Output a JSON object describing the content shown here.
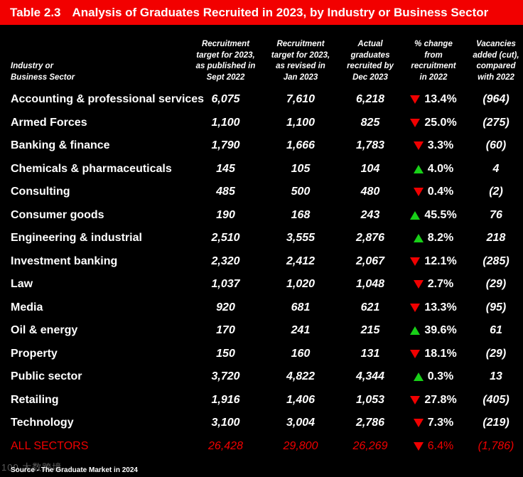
{
  "title": {
    "number": "Table 2.3",
    "text": "Analysis of Graduates Recruited in 2023, by Industry or Business Sector"
  },
  "headers": {
    "sector": [
      "Industry or",
      "Business Sector"
    ],
    "col1": [
      "Recruitment",
      "target for 2023,",
      "as published in",
      "Sept 2022"
    ],
    "col2": [
      "Recruitment",
      "target for 2023,",
      "as revised in",
      "Jan 2023"
    ],
    "col3": [
      "Actual",
      "graduates",
      "recruited by",
      "Dec 2023"
    ],
    "col4": [
      "% change",
      "from",
      "recruitment",
      "in 2022"
    ],
    "col5": [
      "Vacancies",
      "added (cut),",
      "compared",
      "with 2022"
    ]
  },
  "rows": [
    {
      "name": "Accounting & professional services",
      "published": "6,075",
      "revised": "7,610",
      "actual": "6,218",
      "dir": "down",
      "change": "13.4%",
      "vacancies": "(964)"
    },
    {
      "name": "Armed Forces",
      "published": "1,100",
      "revised": "1,100",
      "actual": "825",
      "dir": "down",
      "change": "25.0%",
      "vacancies": "(275)"
    },
    {
      "name": "Banking & finance",
      "published": "1,790",
      "revised": "1,666",
      "actual": "1,783",
      "dir": "down",
      "change": "3.3%",
      "vacancies": "(60)"
    },
    {
      "name": "Chemicals & pharmaceuticals",
      "published": "145",
      "revised": "105",
      "actual": "104",
      "dir": "up",
      "change": "4.0%",
      "vacancies": "4"
    },
    {
      "name": "Consulting",
      "published": "485",
      "revised": "500",
      "actual": "480",
      "dir": "down",
      "change": "0.4%",
      "vacancies": "(2)"
    },
    {
      "name": "Consumer goods",
      "published": "190",
      "revised": "168",
      "actual": "243",
      "dir": "up",
      "change": "45.5%",
      "vacancies": "76"
    },
    {
      "name": "Engineering & industrial",
      "published": "2,510",
      "revised": "3,555",
      "actual": "2,876",
      "dir": "up",
      "change": "8.2%",
      "vacancies": "218"
    },
    {
      "name": "Investment banking",
      "published": "2,320",
      "revised": "2,412",
      "actual": "2,067",
      "dir": "down",
      "change": "12.1%",
      "vacancies": "(285)"
    },
    {
      "name": "Law",
      "published": "1,037",
      "revised": "1,020",
      "actual": "1,048",
      "dir": "down",
      "change": "2.7%",
      "vacancies": "(29)"
    },
    {
      "name": "Media",
      "published": "920",
      "revised": "681",
      "actual": "621",
      "dir": "down",
      "change": "13.3%",
      "vacancies": "(95)"
    },
    {
      "name": "Oil & energy",
      "published": "170",
      "revised": "241",
      "actual": "215",
      "dir": "up",
      "change": "39.6%",
      "vacancies": "61"
    },
    {
      "name": "Property",
      "published": "150",
      "revised": "160",
      "actual": "131",
      "dir": "down",
      "change": "18.1%",
      "vacancies": "(29)"
    },
    {
      "name": "Public sector",
      "published": "3,720",
      "revised": "4,822",
      "actual": "4,344",
      "dir": "up",
      "change": "0.3%",
      "vacancies": "13"
    },
    {
      "name": "Retailing",
      "published": "1,916",
      "revised": "1,406",
      "actual": "1,053",
      "dir": "down",
      "change": "27.8%",
      "vacancies": "(405)"
    },
    {
      "name": "Technology",
      "published": "3,100",
      "revised": "3,004",
      "actual": "2,786",
      "dir": "down",
      "change": "7.3%",
      "vacancies": "(219)"
    }
  ],
  "total": {
    "name": "ALL SECTORS",
    "published": "26,428",
    "revised": "29,800",
    "actual": "26,269",
    "dir": "down",
    "change": "6.4%",
    "vacancies": "(1,786)"
  },
  "source": "Source - The Graduate Market in 2024",
  "watermark": "100 大数跨境",
  "colors": {
    "title_bar": "#f20000",
    "down": "#f00000",
    "up": "#18d018",
    "total_text": "#f00000",
    "background": "#000000"
  }
}
